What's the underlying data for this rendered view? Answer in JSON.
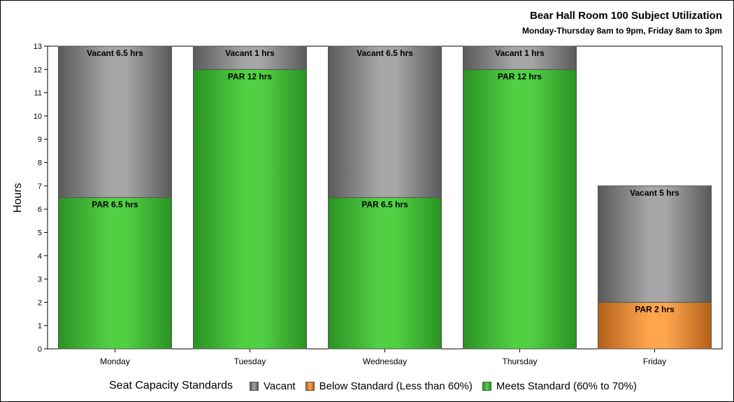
{
  "chart_data": {
    "type": "bar",
    "stacked": true,
    "title": "Bear Hall Room 100 Subject Utilization",
    "subtitle": "Monday-Thursday 8am to 9pm, Friday 8am to 3pm",
    "ylabel": "Hours",
    "xlabel": "",
    "ylim": [
      0,
      13
    ],
    "yticks": [
      "0",
      "1",
      "2",
      "3",
      "4",
      "5",
      "6",
      "7",
      "8",
      "9",
      "10",
      "11",
      "12",
      "13"
    ],
    "categories": [
      "Monday",
      "Tuesday",
      "Wednesday",
      "Thursday",
      "Friday"
    ],
    "bars": [
      {
        "category": "Monday",
        "segments": [
          {
            "standard": "Meets Standard (60% to 70%)",
            "value": 6.5,
            "label": "PAR 6.5 hrs"
          },
          {
            "standard": "Vacant",
            "value": 6.5,
            "label": "Vacant 6.5 hrs"
          }
        ]
      },
      {
        "category": "Tuesday",
        "segments": [
          {
            "standard": "Meets Standard (60% to 70%)",
            "value": 12,
            "label": "PAR 12 hrs"
          },
          {
            "standard": "Vacant",
            "value": 1,
            "label": "Vacant 1 hrs"
          }
        ]
      },
      {
        "category": "Wednesday",
        "segments": [
          {
            "standard": "Meets Standard (60% to 70%)",
            "value": 6.5,
            "label": "PAR 6.5 hrs"
          },
          {
            "standard": "Vacant",
            "value": 6.5,
            "label": "Vacant 6.5 hrs"
          }
        ]
      },
      {
        "category": "Thursday",
        "segments": [
          {
            "standard": "Meets Standard (60% to 70%)",
            "value": 12,
            "label": "PAR 12 hrs"
          },
          {
            "standard": "Vacant",
            "value": 1,
            "label": "Vacant 1 hrs"
          }
        ]
      },
      {
        "category": "Friday",
        "segments": [
          {
            "standard": "Below Standard (Less than 60%)",
            "value": 2,
            "label": "PAR 2 hrs"
          },
          {
            "standard": "Vacant",
            "value": 5,
            "label": "Vacant 5 hrs"
          }
        ]
      }
    ],
    "legend": {
      "title": "Seat Capacity Standards",
      "placement": "bottom",
      "items": [
        {
          "name": "Vacant",
          "color": "#8c8c8c"
        },
        {
          "name": "Below Standard (Less than 60%)",
          "color": "#f0932e"
        },
        {
          "name": "Meets Standard (60% to 70%)",
          "color": "#46c23a"
        }
      ]
    },
    "colors": {
      "Vacant": {
        "edge": "#5a5a5a",
        "mid": "#a6a6a6"
      },
      "Below Standard (Less than 60%)": {
        "edge": "#b4601a",
        "mid": "#ffa64d"
      },
      "Meets Standard (60% to 70%)": {
        "edge": "#2a9224",
        "mid": "#52d044"
      }
    },
    "grid": false
  }
}
